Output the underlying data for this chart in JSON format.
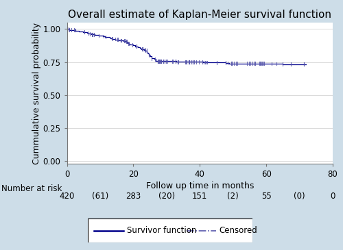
{
  "title": "Overall estimate of Kaplan-Meier survival function",
  "xlabel": "Follow up time in months",
  "ylabel": "Cummulative survival probability",
  "xlim": [
    0,
    80
  ],
  "ylim": [
    -0.02,
    1.05
  ],
  "yticks": [
    0.0,
    0.25,
    0.5,
    0.75,
    1.0
  ],
  "xticks": [
    0,
    20,
    40,
    60,
    80
  ],
  "background_color": "#cddde8",
  "plot_bg_color": "#ffffff",
  "line_color": "#00008B",
  "censored_color": "#5555aa",
  "number_at_risk_label": "Number at risk",
  "n_values": [
    "420",
    "283",
    "151",
    "55",
    "0"
  ],
  "c_values": [
    "",
    "(61)",
    "(20)",
    "(2)",
    "(0)"
  ],
  "x_positions": [
    0,
    20,
    40,
    60,
    80
  ],
  "legend_survivor": "Survivor function",
  "legend_censored": "Censored",
  "title_fontsize": 11,
  "axis_label_fontsize": 9,
  "tick_fontsize": 8.5,
  "nar_fontsize": 8.5
}
